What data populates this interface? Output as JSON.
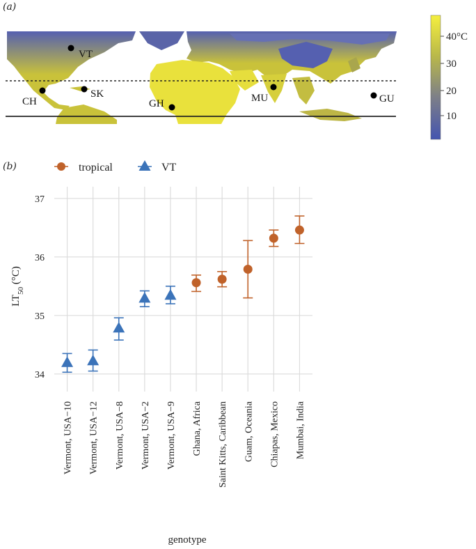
{
  "panel_a_label": "(a)",
  "panel_b_label": "(b)",
  "map": {
    "locations": [
      {
        "code": "VT"
      },
      {
        "code": "CH"
      },
      {
        "code": "SK"
      },
      {
        "code": "GH"
      },
      {
        "code": "MU"
      },
      {
        "code": "GU"
      }
    ],
    "colorbar": {
      "ticks": [
        "40°C",
        "30",
        "20",
        "10"
      ],
      "colors": [
        "#f5ef3e",
        "#b9b84a",
        "#7d7f88",
        "#4454b0"
      ]
    },
    "land_color": "#c9c23a",
    "cold_color": "#5560b0"
  },
  "chart_data": {
    "type": "scatter",
    "title": "",
    "xlabel": "genotype",
    "ylabel": "LT50 (°C)",
    "ylabel_main": "LT",
    "ylabel_sub": "50",
    "ylabel_unit": " (°C)",
    "ylim": [
      33.7,
      37.2
    ],
    "yticks": [
      34,
      35,
      36,
      37
    ],
    "legend": [
      {
        "name": "tropical",
        "marker": "circle",
        "color": "#c0622a"
      },
      {
        "name": "VT",
        "marker": "triangle",
        "color": "#3b73b9"
      }
    ],
    "categories": [
      "Vermont, USA−10",
      "Vermont, USA−12",
      "Vermont, USA−8",
      "Vermont, USA−2",
      "Vermont, USA−9",
      "Ghana, Africa",
      "Saint Kitts, Caribbean",
      "Guam, Oceania",
      "Chiapas, Mexico",
      "Mumbai, India"
    ],
    "series": [
      {
        "name": "VT",
        "marker": "triangle",
        "color": "#3b73b9",
        "points": [
          {
            "category": "Vermont, USA−10",
            "mean": 34.2,
            "low": 34.03,
            "high": 34.35
          },
          {
            "category": "Vermont, USA−12",
            "mean": 34.23,
            "low": 34.05,
            "high": 34.41
          },
          {
            "category": "Vermont, USA−8",
            "mean": 34.79,
            "low": 34.58,
            "high": 34.96
          },
          {
            "category": "Vermont, USA−2",
            "mean": 35.3,
            "low": 35.15,
            "high": 35.42
          },
          {
            "category": "Vermont, USA−9",
            "mean": 35.35,
            "low": 35.2,
            "high": 35.5
          }
        ]
      },
      {
        "name": "tropical",
        "marker": "circle",
        "color": "#c0622a",
        "points": [
          {
            "category": "Ghana, Africa",
            "mean": 35.56,
            "low": 35.41,
            "high": 35.69
          },
          {
            "category": "Saint Kitts, Caribbean",
            "mean": 35.62,
            "low": 35.49,
            "high": 35.75
          },
          {
            "category": "Guam, Oceania",
            "mean": 35.79,
            "low": 35.3,
            "high": 36.28
          },
          {
            "category": "Chiapas, Mexico",
            "mean": 36.32,
            "low": 36.18,
            "high": 36.46
          },
          {
            "category": "Mumbai, India",
            "mean": 36.46,
            "low": 36.23,
            "high": 36.7
          }
        ]
      }
    ]
  }
}
